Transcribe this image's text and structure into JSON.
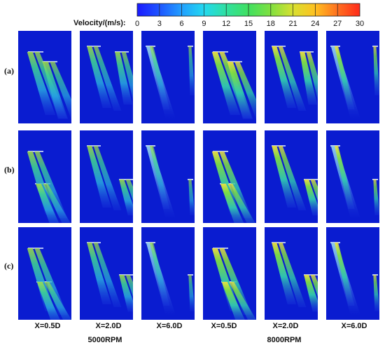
{
  "colorbar": {
    "label": "Velocity/(m/s):",
    "ticks": [
      "0",
      "3",
      "6",
      "9",
      "12",
      "15",
      "18",
      "21",
      "24",
      "27",
      "30"
    ],
    "colors": [
      "#1a1aff",
      "#2a7bff",
      "#22c7ff",
      "#2fe0c0",
      "#40e070",
      "#60e040",
      "#a8e030",
      "#e8e030",
      "#ffb020",
      "#ff6020",
      "#ff2a1a"
    ]
  },
  "rows": [
    {
      "label": "(a)"
    },
    {
      "label": "(b)"
    },
    {
      "label": "(c)"
    }
  ],
  "columns": [
    {
      "label": "X=0.5D"
    },
    {
      "label": "X=2.0D"
    },
    {
      "label": "X=6.0D"
    },
    {
      "label": "X=0.5D"
    },
    {
      "label": "X=2.0D"
    },
    {
      "label": "X=6.0D"
    }
  ],
  "groups": [
    {
      "label": "5000RPM"
    },
    {
      "label": "8000RPM"
    }
  ],
  "colors": {
    "field_background": "#0a1cd0",
    "plume_low": "#2fb8e8",
    "plume_mid": "#3fd890",
    "plume_high": "#a8e040",
    "plume_peak": "#f0e040"
  }
}
